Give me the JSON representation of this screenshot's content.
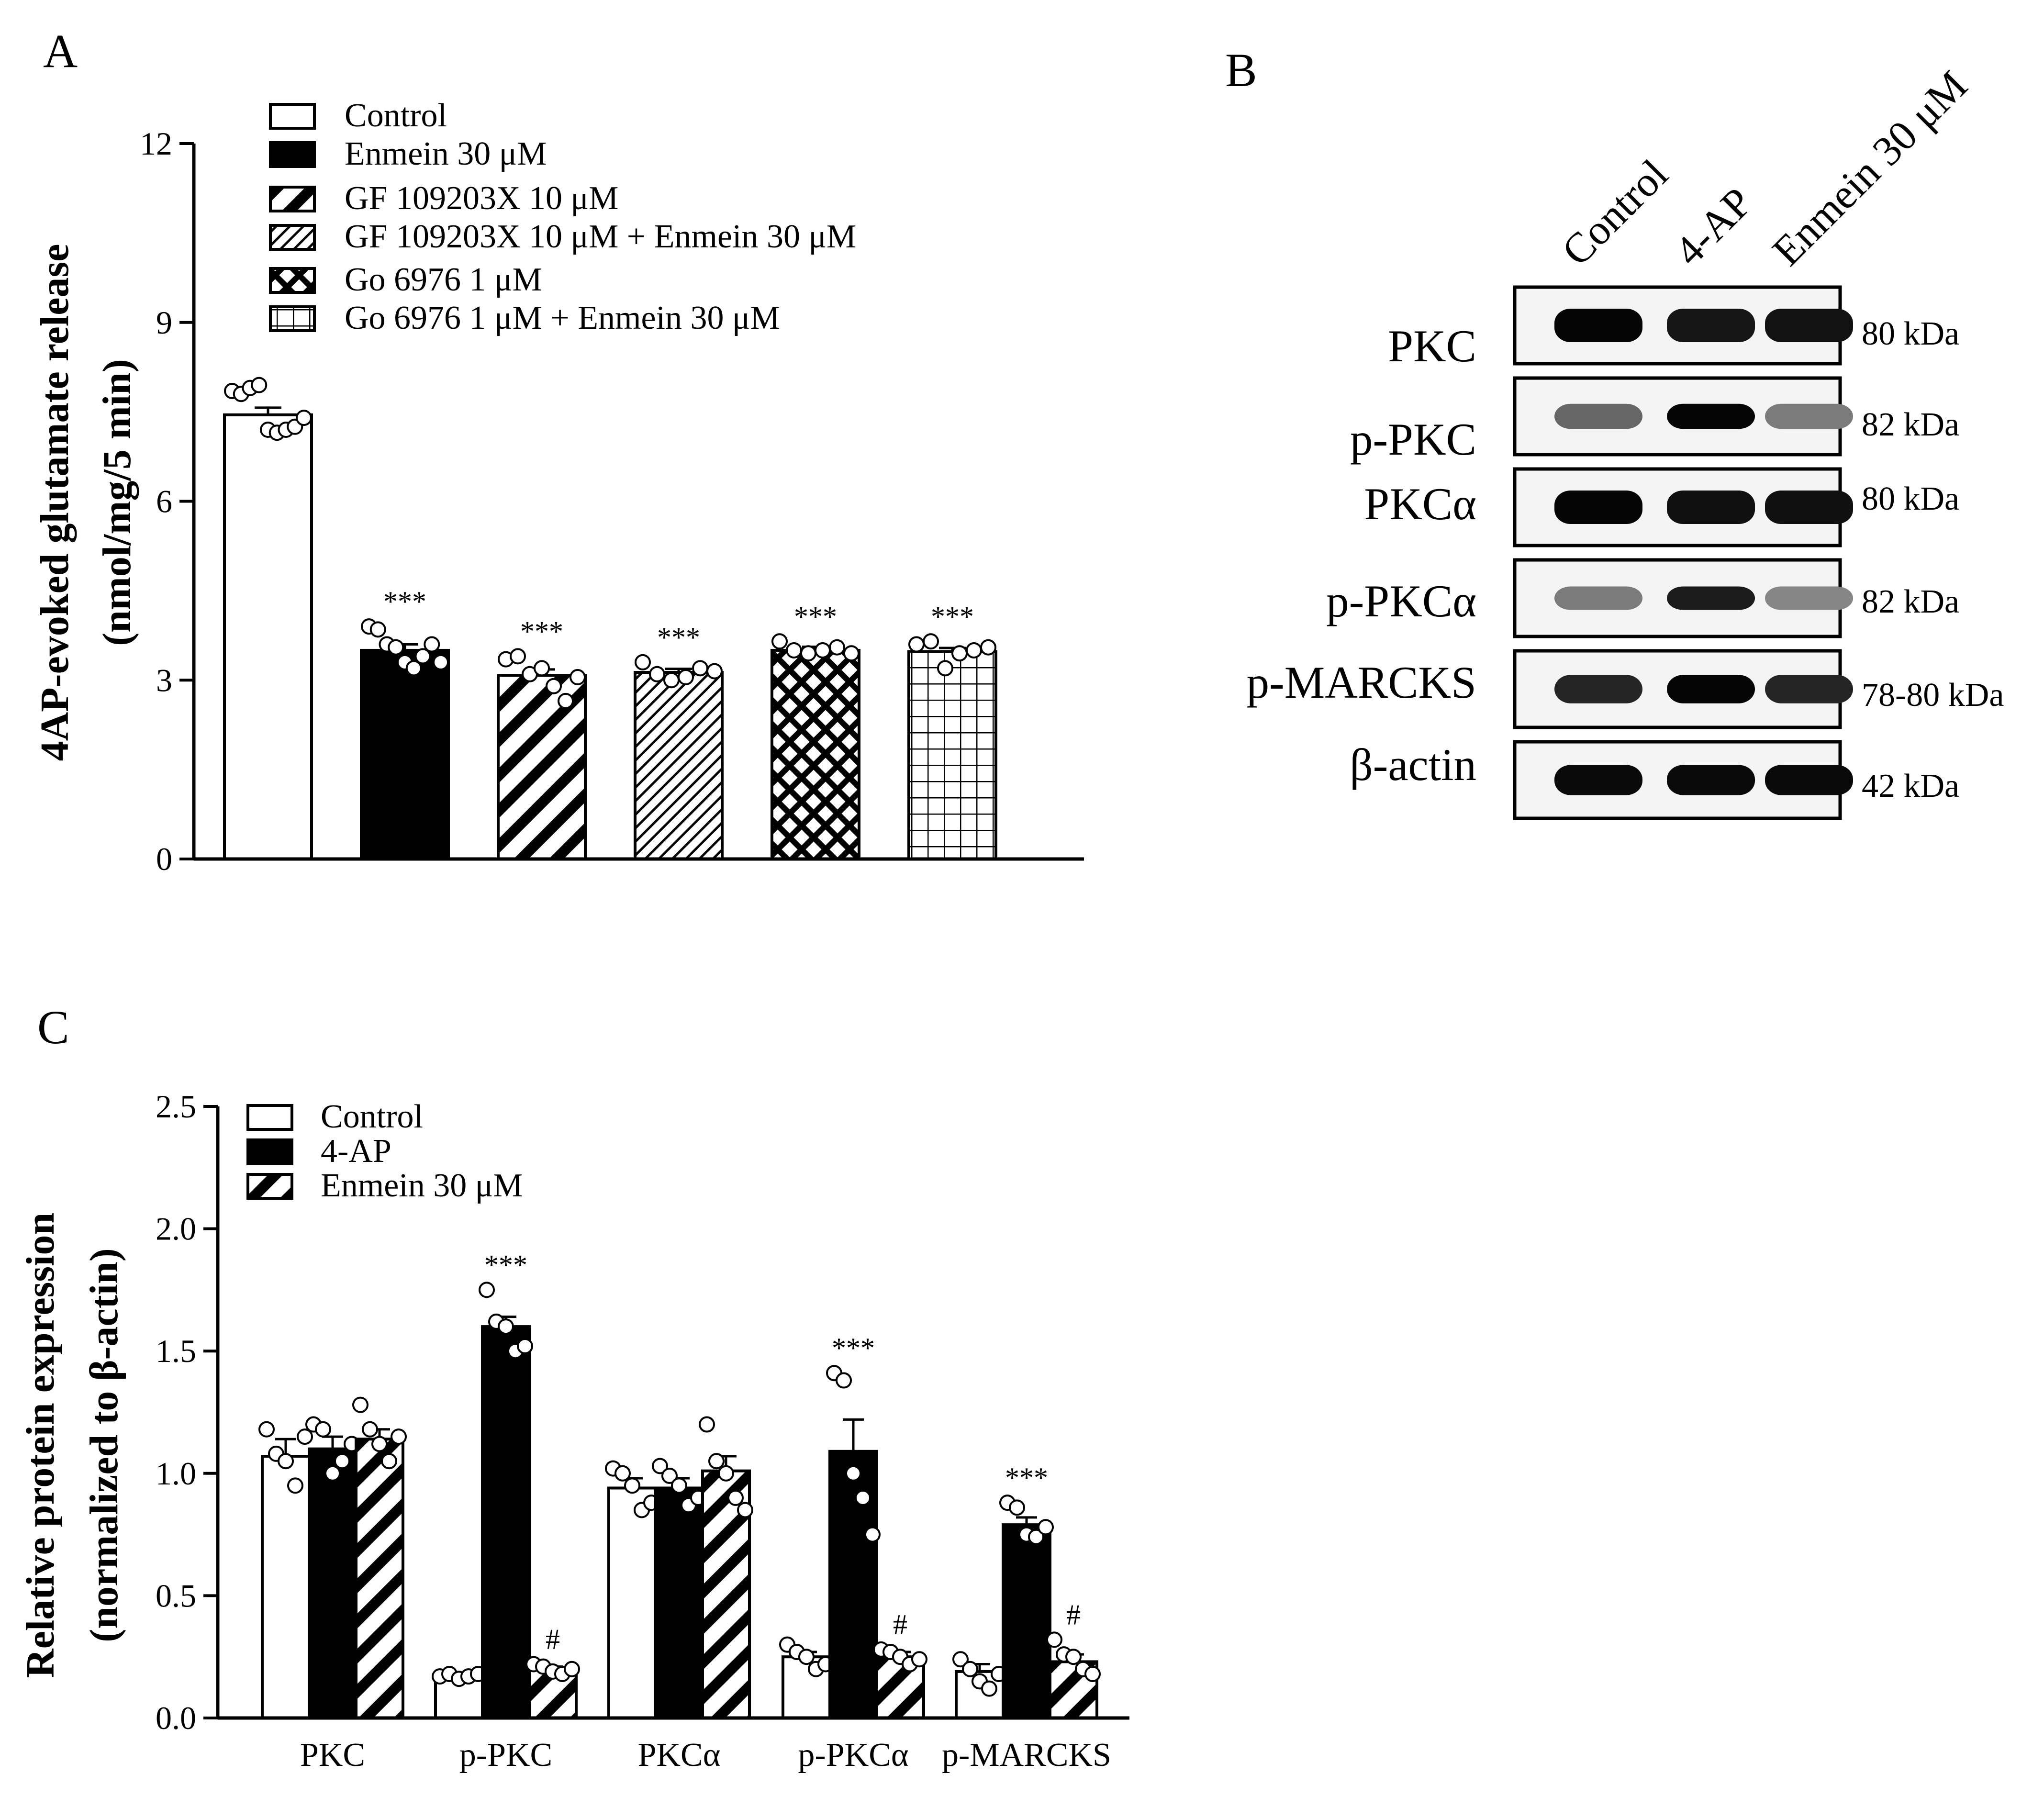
{
  "panels": {
    "a": "A",
    "b": "B",
    "c": "C"
  },
  "chart_data": [
    {
      "type": "bar",
      "ylabel_line1": "4AP-evoked glutamate release",
      "ylabel_line2": "(nmol/mg/5 min)",
      "ylim": [
        0,
        12
      ],
      "yticks": [
        "0",
        "3",
        "6",
        "9",
        "12"
      ],
      "legend_position": "top-left",
      "series": [
        {
          "name": "Control",
          "value": 7.45,
          "sem": 0.12,
          "pattern": "solid-white",
          "sig": "",
          "points": [
            7.85,
            7.8,
            7.9,
            7.95,
            7.2,
            7.15,
            7.2,
            7.25,
            7.4
          ]
        },
        {
          "name": "Enmein 30 μM",
          "value": 3.5,
          "sem": 0.1,
          "pattern": "solid-black",
          "sig": "***",
          "points": [
            3.9,
            3.85,
            3.6,
            3.55,
            3.3,
            3.2,
            3.4,
            3.6,
            3.3
          ]
        },
        {
          "name": "GF 109203X 10 μM",
          "value": 3.08,
          "sem": 0.1,
          "pattern": "wide-hatch",
          "sig": "***",
          "points": [
            3.35,
            3.4,
            3.1,
            3.2,
            2.9,
            2.65,
            3.05
          ]
        },
        {
          "name": "GF 109203X 10 μM + Enmein 30 μM",
          "value": 3.13,
          "sem": 0.06,
          "pattern": "fine-hatch",
          "sig": "***",
          "points": [
            3.3,
            3.1,
            3.0,
            3.05,
            3.2,
            3.15
          ]
        },
        {
          "name": "Go 6976 1 μM",
          "value": 3.5,
          "sem": 0.06,
          "pattern": "crosshatch",
          "sig": "***",
          "points": [
            3.65,
            3.5,
            3.45,
            3.5,
            3.55,
            3.45
          ]
        },
        {
          "name": "Go 6976 1 μM + Enmein 30 μM",
          "value": 3.48,
          "sem": 0.06,
          "pattern": "grid",
          "sig": "***",
          "points": [
            3.6,
            3.65,
            3.2,
            3.45,
            3.5,
            3.55
          ]
        }
      ]
    },
    {
      "type": "bar",
      "ylabel_line1": "Relative protein expression",
      "ylabel_line2": "(normalized to β-actin)",
      "ylim": [
        0,
        2.5
      ],
      "yticks": [
        "0.0",
        "0.5",
        "1.0",
        "1.5",
        "2.0",
        "2.5"
      ],
      "legend_position": "top-left",
      "categories": [
        "PKC",
        "p-PKC",
        "PKCα",
        "p-PKCα",
        "p-MARCKS"
      ],
      "series": [
        {
          "name": "Control",
          "pattern": "solid-white",
          "values": [
            1.07,
            0.17,
            0.94,
            0.25,
            0.19
          ],
          "sem": [
            0.07,
            0.01,
            0.04,
            0.02,
            0.03
          ],
          "sig": [
            "",
            "",
            "",
            "",
            ""
          ],
          "points": [
            [
              1.18,
              1.08,
              1.05,
              0.95,
              1.15
            ],
            [
              0.17,
              0.18,
              0.16,
              0.17,
              0.18
            ],
            [
              1.02,
              1.0,
              0.95,
              0.85,
              0.88
            ],
            [
              0.3,
              0.27,
              0.25,
              0.2,
              0.22
            ],
            [
              0.24,
              0.2,
              0.15,
              0.12,
              0.18
            ]
          ]
        },
        {
          "name": "4-AP",
          "pattern": "solid-black",
          "values": [
            1.1,
            1.6,
            0.94,
            1.09,
            0.79
          ],
          "sem": [
            0.05,
            0.04,
            0.04,
            0.13,
            0.03
          ],
          "sig": [
            "",
            "***",
            "",
            "***",
            "***"
          ],
          "points": [
            [
              1.2,
              1.18,
              1.0,
              1.05,
              1.12
            ],
            [
              1.75,
              1.62,
              1.6,
              1.5,
              1.52
            ],
            [
              1.03,
              0.99,
              0.95,
              0.87,
              0.9
            ],
            [
              1.41,
              1.38,
              1.0,
              0.9,
              0.75
            ],
            [
              0.88,
              0.86,
              0.75,
              0.74,
              0.78
            ]
          ]
        },
        {
          "name": "Enmein 30 μM",
          "pattern": "wide-hatch",
          "values": [
            1.14,
            0.2,
            1.01,
            0.25,
            0.23
          ],
          "sem": [
            0.04,
            0.01,
            0.06,
            0.02,
            0.03
          ],
          "sig": [
            "",
            "#",
            "",
            "#",
            "#"
          ],
          "points": [
            [
              1.28,
              1.18,
              1.12,
              1.05,
              1.15
            ],
            [
              0.22,
              0.21,
              0.19,
              0.18,
              0.2
            ],
            [
              1.2,
              1.05,
              1.0,
              0.9,
              0.85
            ],
            [
              0.28,
              0.27,
              0.25,
              0.22,
              0.24
            ],
            [
              0.32,
              0.26,
              0.25,
              0.2,
              0.18
            ]
          ]
        }
      ]
    }
  ],
  "western_blot": {
    "lanes": [
      "Control",
      "4-AP",
      "Enmein 30 μM"
    ],
    "rows": [
      {
        "label": "PKC",
        "kda": "80 kDa",
        "intensity": [
          1.0,
          0.92,
          0.94
        ],
        "height": 1.0
      },
      {
        "label": "p-PKC",
        "kda": "82 kDa",
        "intensity": [
          0.55,
          1.0,
          0.45
        ],
        "height": 0.75
      },
      {
        "label": "PKCα",
        "kda": "80 kDa",
        "intensity": [
          1.0,
          0.95,
          0.95
        ],
        "height": 1.0
      },
      {
        "label": "p-PKCα",
        "kda": "82 kDa",
        "intensity": [
          0.45,
          0.9,
          0.4
        ],
        "height": 0.7
      },
      {
        "label": "p-MARCKS",
        "kda": "78-80 kDa",
        "intensity": [
          0.85,
          1.0,
          0.85
        ],
        "height": 0.85
      },
      {
        "label": "β-actin",
        "kda": "42 kDa",
        "intensity": [
          0.98,
          0.98,
          0.98
        ],
        "height": 0.9
      }
    ]
  }
}
